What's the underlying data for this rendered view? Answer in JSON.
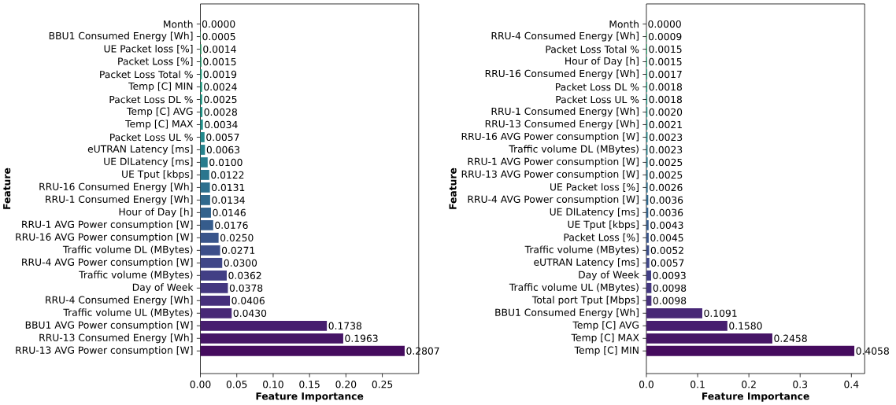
{
  "chart_data": [
    {
      "type": "bar",
      "orientation": "horizontal",
      "xlabel": "Feature Importance",
      "ylabel": "Feature",
      "categories": [
        "Month",
        "BBU1 Consumed Energy [Wh]",
        "UE Packet loss [%]",
        "Packet Loss [%]",
        "Packet Loss Total %",
        "Temp [C] MIN",
        "Packet Loss DL %",
        "Temp [C] AVG",
        "Temp [C] MAX",
        "Packet Loss UL %",
        "eUTRAN Latency [ms]",
        "UE DlLatency [ms]",
        "UE Tput [kbps]",
        "RRU-16 Consumed Energy [Wh]",
        "RRU-1 Consumed Energy [Wh]",
        "Hour of Day [h]",
        "RRU-1 AVG Power consumption [W]",
        "RRU-16 AVG Power consumption [W]",
        "Traffic volume DL  (MBytes)",
        "RRU-4 AVG Power consumption [W]",
        "Traffic volume  (MBytes)",
        "Day of Week",
        "RRU-4 Consumed Energy [Wh]",
        "Traffic volume UL  (MBytes)",
        "BBU1 AVG Power consumption [W]",
        "RRU-13   Consumed Energy [Wh]",
        "RRU-13 AVG Power consumption [W]"
      ],
      "values": [
        0.0,
        0.0005,
        0.0014,
        0.0015,
        0.0019,
        0.0024,
        0.0025,
        0.0028,
        0.0034,
        0.0057,
        0.0063,
        0.01,
        0.0122,
        0.0131,
        0.0134,
        0.0146,
        0.0176,
        0.025,
        0.0271,
        0.03,
        0.0362,
        0.0378,
        0.0406,
        0.043,
        0.1738,
        0.1963,
        0.2807
      ],
      "value_labels": [
        "0.0000",
        "0.0005",
        "0.0014",
        "0.0015",
        "0.0019",
        "0.0024",
        "0.0025",
        "0.0028",
        "0.0034",
        "0.0057",
        "0.0063",
        "0.0100",
        "0.0122",
        "0.0131",
        "0.0134",
        "0.0146",
        "0.0176",
        "0.0250",
        "0.0271",
        "0.0300",
        "0.0362",
        "0.0378",
        "0.0406",
        "0.0430",
        "0.1738",
        "0.1963",
        "0.2807"
      ],
      "colors": [
        "#47c06e",
        "#3dba74",
        "#34b479",
        "#2bae7e",
        "#23a884",
        "#22a286",
        "#219c88",
        "#21968a",
        "#21918c",
        "#238a8d",
        "#26838d",
        "#287d8e",
        "#2b768e",
        "#2d708e",
        "#30698d",
        "#33638d",
        "#365c8c",
        "#39558b",
        "#3c4e89",
        "#404788",
        "#423f85",
        "#443780",
        "#462f7b",
        "#472776",
        "#471e6f",
        "#461566",
        "#450b5e"
      ],
      "xlim": [
        0,
        0.3
      ],
      "xticks": [
        {
          "value": 0,
          "label": "0.00"
        },
        {
          "value": 0.05,
          "label": "0.05"
        },
        {
          "value": 0.1,
          "label": "0.10"
        },
        {
          "value": 0.15,
          "label": "0.15"
        },
        {
          "value": 0.2,
          "label": "0.20"
        },
        {
          "value": 0.25,
          "label": "0.25"
        }
      ]
    },
    {
      "type": "bar",
      "orientation": "horizontal",
      "xlabel": "Feature Importance",
      "ylabel": "Feature",
      "categories": [
        "Month",
        "RRU-4 Consumed Energy [Wh]",
        "Packet Loss Total %",
        "Hour of Day [h]",
        "RRU-16 Consumed Energy [Wh]",
        "Packet Loss DL %",
        "Packet Loss UL %",
        "RRU-1 Consumed Energy [Wh]",
        "RRU-13   Consumed Energy [Wh]",
        "RRU-16 AVG Power consumption [W]",
        "Traffic volume DL  (MBytes)",
        "RRU-1 AVG Power consumption [W]",
        "RRU-13 AVG Power consumption [W]",
        "UE Packet loss [%]",
        "RRU-4 AVG Power consumption [W]",
        "UE DlLatency [ms]",
        "UE Tput [kbps]",
        "Packet Loss [%]",
        "Traffic volume  (MBytes)",
        "eUTRAN Latency [ms]",
        "Day of Week",
        "Traffic volume UL  (MBytes)",
        "Total port Tput [Mbps]",
        "BBU1 Consumed Energy [Wh]",
        "Temp [C] AVG",
        "Temp [C] MAX",
        "Temp [C] MIN"
      ],
      "values": [
        0.0,
        0.0009,
        0.0015,
        0.0015,
        0.0017,
        0.0018,
        0.0018,
        0.002,
        0.0021,
        0.0023,
        0.0023,
        0.0025,
        0.0025,
        0.0026,
        0.0036,
        0.0036,
        0.0043,
        0.0045,
        0.0052,
        0.0057,
        0.0093,
        0.0098,
        0.0098,
        0.1091,
        0.158,
        0.2458,
        0.4058
      ],
      "value_labels": [
        "0.0000",
        "0.0009",
        "0.0015",
        "0.0015",
        "0.0017",
        "0.0018",
        "0.0018",
        "0.0020",
        "0.0021",
        "0.0023",
        "0.0023",
        "0.0025",
        "0.0025",
        "0.0026",
        "0.0036",
        "0.0036",
        "0.0043",
        "0.0045",
        "0.0052",
        "0.0057",
        "0.0093",
        "0.0098",
        "0.0098",
        "0.1091",
        "0.1580",
        "0.2458",
        "0.4058"
      ],
      "colors": [
        "#47c06e",
        "#3dba74",
        "#34b479",
        "#2bae7e",
        "#23a884",
        "#22a286",
        "#219c88",
        "#21968a",
        "#21918c",
        "#238a8d",
        "#26838d",
        "#287d8e",
        "#2b768e",
        "#2d708e",
        "#30698d",
        "#33638d",
        "#365c8c",
        "#39558b",
        "#3c4e89",
        "#404788",
        "#423f85",
        "#443780",
        "#462f7b",
        "#472776",
        "#471e6f",
        "#461566",
        "#450b5e"
      ],
      "xlim": [
        0,
        0.426
      ],
      "xticks": [
        {
          "value": 0,
          "label": "0.0"
        },
        {
          "value": 0.1,
          "label": "0.1"
        },
        {
          "value": 0.2,
          "label": "0.2"
        },
        {
          "value": 0.3,
          "label": "0.3"
        },
        {
          "value": 0.4,
          "label": "0.4"
        }
      ]
    }
  ]
}
